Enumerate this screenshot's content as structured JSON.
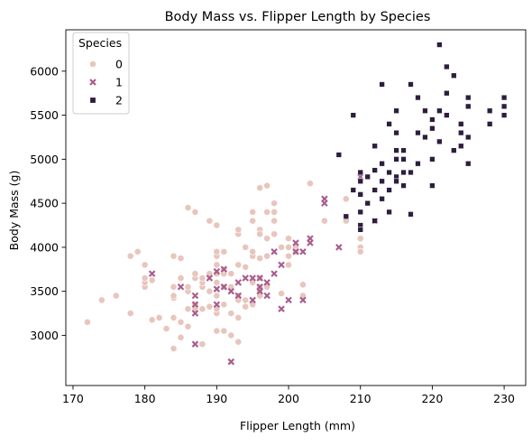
{
  "chart_data": {
    "type": "scatter",
    "title": "Body Mass vs. Flipper Length by Species",
    "xlabel": "Flipper Length (mm)",
    "ylabel": "Body Mass (g)",
    "xlim": [
      169,
      233
    ],
    "ylim": [
      2430,
      6470
    ],
    "xticks": [
      170,
      180,
      190,
      200,
      210,
      220,
      230
    ],
    "yticks": [
      3000,
      3500,
      4000,
      4500,
      5000,
      5500,
      6000
    ],
    "grid": false,
    "legend": {
      "title": "Species",
      "placement": "top-left"
    },
    "series": [
      {
        "name": "0",
        "marker": "circle",
        "color": "#e8c6bd",
        "points": [
          [
            172,
            3150
          ],
          [
            174,
            3400
          ],
          [
            176,
            3450
          ],
          [
            178,
            3250
          ],
          [
            178,
            3900
          ],
          [
            179,
            3950
          ],
          [
            180,
            3550
          ],
          [
            180,
            3600
          ],
          [
            180,
            3650
          ],
          [
            180,
            3800
          ],
          [
            181,
            3625
          ],
          [
            181,
            3175
          ],
          [
            182,
            3200
          ],
          [
            183,
            3075
          ],
          [
            184,
            2850
          ],
          [
            184,
            3200
          ],
          [
            184,
            3425
          ],
          [
            184,
            3550
          ],
          [
            184,
            3900
          ],
          [
            184,
            3450
          ],
          [
            185,
            2975
          ],
          [
            185,
            3150
          ],
          [
            185,
            3650
          ],
          [
            185,
            3875
          ],
          [
            186,
            3100
          ],
          [
            186,
            3300
          ],
          [
            186,
            3500
          ],
          [
            186,
            3550
          ],
          [
            186,
            4450
          ],
          [
            187,
            3650
          ],
          [
            187,
            3350
          ],
          [
            187,
            3300
          ],
          [
            187,
            3700
          ],
          [
            187,
            4400
          ],
          [
            188,
            2900
          ],
          [
            188,
            3300
          ],
          [
            188,
            3550
          ],
          [
            188,
            3600
          ],
          [
            188,
            3650
          ],
          [
            189,
            3500
          ],
          [
            189,
            3325
          ],
          [
            189,
            4300
          ],
          [
            189,
            3700
          ],
          [
            190,
            3050
          ],
          [
            190,
            3250
          ],
          [
            190,
            3300
          ],
          [
            190,
            3450
          ],
          [
            190,
            3600
          ],
          [
            190,
            3700
          ],
          [
            190,
            3800
          ],
          [
            190,
            3900
          ],
          [
            190,
            3950
          ],
          [
            190,
            4250
          ],
          [
            191,
            3050
          ],
          [
            191,
            3350
          ],
          [
            191,
            3550
          ],
          [
            191,
            3700
          ],
          [
            191,
            3750
          ],
          [
            191,
            3950
          ],
          [
            192,
            3000
          ],
          [
            192,
            3250
          ],
          [
            192,
            3550
          ],
          [
            192,
            3700
          ],
          [
            193,
            2925
          ],
          [
            193,
            3200
          ],
          [
            193,
            3400
          ],
          [
            193,
            3450
          ],
          [
            193,
            3800
          ],
          [
            193,
            4150
          ],
          [
            193,
            4200
          ],
          [
            194,
            3400
          ],
          [
            194,
            3325
          ],
          [
            194,
            3775
          ],
          [
            194,
            4000
          ],
          [
            195,
            3350
          ],
          [
            195,
            3600
          ],
          [
            195,
            3900
          ],
          [
            195,
            3950
          ],
          [
            195,
            4300
          ],
          [
            195,
            4400
          ],
          [
            196,
            4675
          ],
          [
            196,
            3875
          ],
          [
            196,
            3550
          ],
          [
            196,
            3500
          ],
          [
            196,
            3650
          ],
          [
            196,
            3450
          ],
          [
            196,
            4200
          ],
          [
            196,
            4150
          ],
          [
            197,
            4700
          ],
          [
            197,
            4400
          ],
          [
            197,
            4100
          ],
          [
            197,
            3900
          ],
          [
            197,
            3550
          ],
          [
            198,
            4400
          ],
          [
            198,
            4500
          ],
          [
            198,
            4150
          ],
          [
            198,
            4300
          ],
          [
            199,
            3475
          ],
          [
            199,
            4000
          ],
          [
            200,
            3800
          ],
          [
            200,
            3900
          ],
          [
            200,
            4000
          ],
          [
            200,
            4100
          ],
          [
            201,
            4000
          ],
          [
            201,
            3950
          ],
          [
            202,
            3575
          ],
          [
            202,
            3450
          ],
          [
            203,
            4725
          ],
          [
            205,
            4300
          ],
          [
            208,
            4300
          ],
          [
            208,
            4550
          ],
          [
            210,
            4000
          ],
          [
            210,
            4100
          ],
          [
            210,
            3950
          ]
        ]
      },
      {
        "name": "1",
        "marker": "x",
        "color": "#a95d8e",
        "points": [
          [
            181,
            3700
          ],
          [
            185,
            3550
          ],
          [
            187,
            2900
          ],
          [
            187,
            3250
          ],
          [
            187,
            3350
          ],
          [
            187,
            3450
          ],
          [
            189,
            3650
          ],
          [
            190,
            3350
          ],
          [
            190,
            3525
          ],
          [
            190,
            3725
          ],
          [
            191,
            3550
          ],
          [
            191,
            3750
          ],
          [
            192,
            2700
          ],
          [
            192,
            3500
          ],
          [
            193,
            3450
          ],
          [
            193,
            3600
          ],
          [
            194,
            3650
          ],
          [
            195,
            3400
          ],
          [
            195,
            3650
          ],
          [
            196,
            3550
          ],
          [
            196,
            3500
          ],
          [
            196,
            3650
          ],
          [
            197,
            3600
          ],
          [
            197,
            3450
          ],
          [
            198,
            3950
          ],
          [
            198,
            3700
          ],
          [
            199,
            3300
          ],
          [
            199,
            3800
          ],
          [
            200,
            3400
          ],
          [
            201,
            3950
          ],
          [
            201,
            4050
          ],
          [
            202,
            3950
          ],
          [
            202,
            3400
          ],
          [
            203,
            4100
          ],
          [
            203,
            4050
          ],
          [
            205,
            4550
          ],
          [
            205,
            4500
          ],
          [
            207,
            4000
          ],
          [
            210,
            4800
          ],
          [
            212,
            4300
          ]
        ]
      },
      {
        "name": "2",
        "marker": "square",
        "color": "#2d1e3e",
        "points": [
          [
            207,
            5050
          ],
          [
            208,
            4350
          ],
          [
            209,
            5500
          ],
          [
            209,
            4650
          ],
          [
            210,
            4600
          ],
          [
            210,
            4250
          ],
          [
            210,
            4750
          ],
          [
            210,
            4850
          ],
          [
            210,
            4400
          ],
          [
            210,
            4200
          ],
          [
            211,
            4800
          ],
          [
            211,
            4500
          ],
          [
            212,
            4875
          ],
          [
            212,
            5150
          ],
          [
            212,
            4650
          ],
          [
            212,
            4300
          ],
          [
            213,
            4950
          ],
          [
            213,
            5850
          ],
          [
            213,
            4750
          ],
          [
            213,
            4550
          ],
          [
            214,
            4650
          ],
          [
            214,
            4850
          ],
          [
            214,
            5400
          ],
          [
            214,
            4400
          ],
          [
            215,
            5000
          ],
          [
            215,
            5100
          ],
          [
            215,
            4800
          ],
          [
            215,
            4750
          ],
          [
            215,
            5300
          ],
          [
            215,
            5550
          ],
          [
            216,
            4850
          ],
          [
            216,
            5100
          ],
          [
            216,
            5000
          ],
          [
            216,
            4700
          ],
          [
            217,
            5850
          ],
          [
            217,
            4850
          ],
          [
            217,
            4375
          ],
          [
            218,
            5700
          ],
          [
            218,
            4950
          ],
          [
            218,
            5300
          ],
          [
            219,
            5250
          ],
          [
            219,
            5550
          ],
          [
            220,
            5350
          ],
          [
            220,
            5450
          ],
          [
            220,
            4700
          ],
          [
            220,
            5000
          ],
          [
            221,
            5200
          ],
          [
            221,
            6300
          ],
          [
            221,
            5550
          ],
          [
            222,
            5750
          ],
          [
            222,
            6050
          ],
          [
            222,
            5500
          ],
          [
            223,
            5100
          ],
          [
            223,
            5950
          ],
          [
            224,
            5400
          ],
          [
            224,
            5300
          ],
          [
            224,
            5150
          ],
          [
            225,
            5600
          ],
          [
            225,
            5700
          ],
          [
            225,
            5250
          ],
          [
            225,
            4950
          ],
          [
            228,
            5550
          ],
          [
            228,
            5400
          ],
          [
            230,
            5700
          ],
          [
            230,
            5500
          ],
          [
            230,
            5600
          ]
        ]
      }
    ]
  }
}
